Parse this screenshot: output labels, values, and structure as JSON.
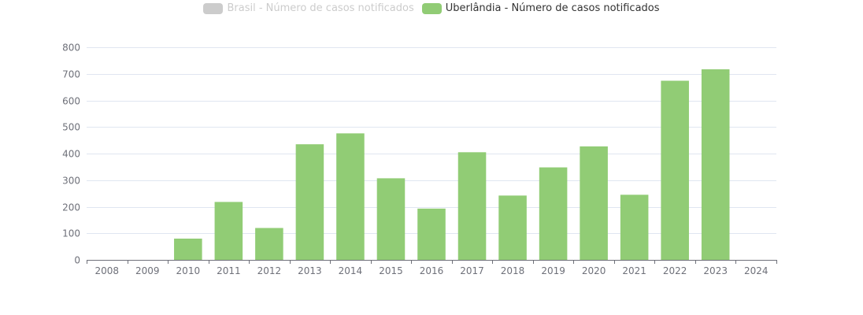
{
  "legend": [
    {
      "label": "Brasil - Número de casos notificados",
      "color": "#cccccc",
      "active": false
    },
    {
      "label": "Uberlândia - Número de casos notificados",
      "color": "#91cc75",
      "active": true
    }
  ],
  "chart_data": {
    "type": "bar",
    "categories": [
      "2008",
      "2009",
      "2010",
      "2011",
      "2012",
      "2013",
      "2014",
      "2015",
      "2016",
      "2017",
      "2018",
      "2019",
      "2020",
      "2021",
      "2022",
      "2023",
      "2024"
    ],
    "series": [
      {
        "name": "Uberlândia - Número de casos notificados",
        "values": [
          0,
          0,
          80,
          218,
          120,
          435,
          476,
          307,
          193,
          405,
          242,
          348,
          427,
          245,
          674,
          717,
          0
        ],
        "color": "#91cc75"
      }
    ],
    "yticks": [
      "0",
      "100",
      "200",
      "300",
      "400",
      "500",
      "600",
      "700",
      "800"
    ],
    "ylim": [
      0,
      800
    ],
    "grid": true,
    "legend_position": "top-center"
  }
}
